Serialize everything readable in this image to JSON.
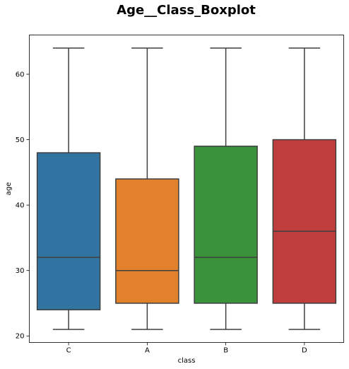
{
  "chart_data": {
    "type": "boxplot",
    "title": "Age__Class_Boxplot",
    "xlabel": "class",
    "ylabel": "age",
    "ylim": [
      19,
      66
    ],
    "yticks": [
      20,
      30,
      40,
      50,
      60
    ],
    "grid": false,
    "categories": [
      "C",
      "A",
      "B",
      "D"
    ],
    "boxes": [
      {
        "category": "C",
        "whisker_low": 21,
        "q1": 24,
        "median": 32,
        "q3": 48,
        "whisker_high": 64,
        "color": "#3274a1"
      },
      {
        "category": "A",
        "whisker_low": 21,
        "q1": 25,
        "median": 30,
        "q3": 44,
        "whisker_high": 64,
        "color": "#e1812c"
      },
      {
        "category": "B",
        "whisker_low": 21,
        "q1": 25,
        "median": 32,
        "q3": 49,
        "whisker_high": 64,
        "color": "#3a923a"
      },
      {
        "category": "D",
        "whisker_low": 21,
        "q1": 25,
        "median": 36,
        "q3": 50,
        "whisker_high": 64,
        "color": "#c03d3e"
      }
    ]
  }
}
